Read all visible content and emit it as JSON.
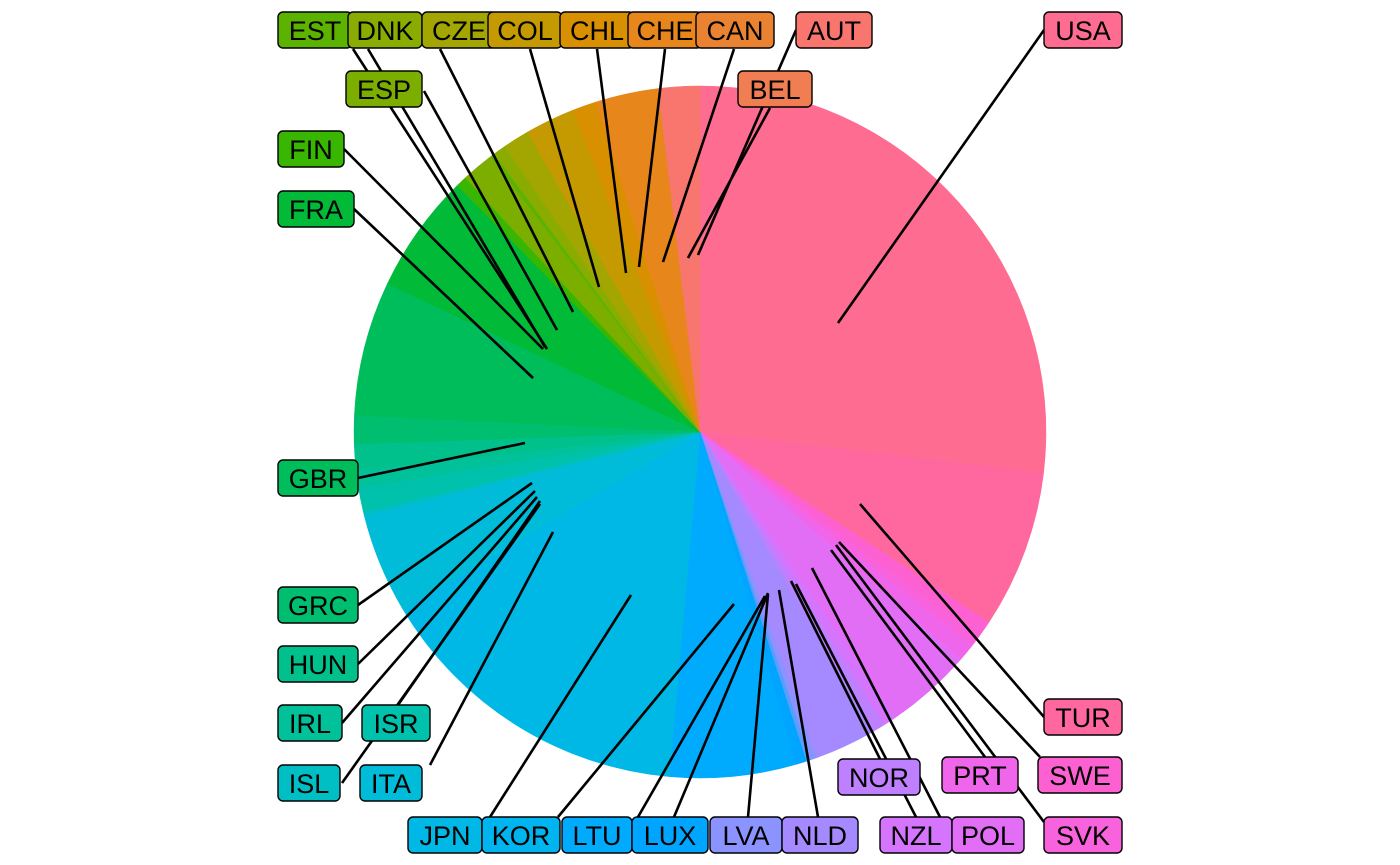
{
  "chart_data": {
    "type": "pie",
    "title": "",
    "start_angle_deg": 0,
    "direction": "clockwise",
    "legend": "none",
    "slices": [
      {
        "label": "USA",
        "value": 26.5,
        "color": "#FF6C91"
      },
      {
        "label": "TUR",
        "value": 7.3,
        "color": "#FF689F"
      },
      {
        "label": "SWE",
        "value": 0.8,
        "color": "#FD61D1"
      },
      {
        "label": "SVK",
        "value": 0.5,
        "color": "#F962DD"
      },
      {
        "label": "PRT",
        "value": 0.8,
        "color": "#F066EA"
      },
      {
        "label": "POL",
        "value": 4.0,
        "color": "#E36EF6"
      },
      {
        "label": "NZL",
        "value": 0.6,
        "color": "#D575FE"
      },
      {
        "label": "NOR",
        "value": 0.6,
        "color": "#BF80FF"
      },
      {
        "label": "NLD",
        "value": 2.8,
        "color": "#A58AFF"
      },
      {
        "label": "LVA",
        "value": 0.3,
        "color": "#8B93FF"
      },
      {
        "label": "LUX",
        "value": 0.2,
        "color": "#5B9DFF"
      },
      {
        "label": "LTU",
        "value": 0.5,
        "color": "#00A5FF"
      },
      {
        "label": "KOR",
        "value": 5.8,
        "color": "#00ABFD"
      },
      {
        "label": "JPN",
        "value": 14.8,
        "color": "#00B8E5"
      },
      {
        "label": "ITA",
        "value": 4.6,
        "color": "#00BCD8"
      },
      {
        "label": "ISL",
        "value": 0.2,
        "color": "#00BFC4"
      },
      {
        "label": "ISR",
        "value": 1.1,
        "color": "#00C1AB"
      },
      {
        "label": "IRL",
        "value": 0.8,
        "color": "#00C19A"
      },
      {
        "label": "HUN",
        "value": 1.2,
        "color": "#00C08B"
      },
      {
        "label": "GRC",
        "value": 1.3,
        "color": "#00BE70"
      },
      {
        "label": "GBR",
        "value": 6.2,
        "color": "#00BD5C"
      },
      {
        "label": "FRA",
        "value": 5.5,
        "color": "#00BA38"
      },
      {
        "label": "FIN",
        "value": 0.5,
        "color": "#39B600"
      },
      {
        "label": "ESP",
        "value": 1.5,
        "color": "#7CAE00"
      },
      {
        "label": "EST",
        "value": 0.2,
        "color": "#5BB300"
      },
      {
        "label": "DNK",
        "value": 0.6,
        "color": "#8AAB00"
      },
      {
        "label": "CZE",
        "value": 1.2,
        "color": "#A3A500"
      },
      {
        "label": "COL",
        "value": 2.3,
        "color": "#C49A00"
      },
      {
        "label": "CHL",
        "value": 1.1,
        "color": "#D89000"
      },
      {
        "label": "CHE",
        "value": 2.9,
        "color": "#E7861B"
      },
      {
        "label": "CAN",
        "value": 0.0,
        "color": "#EA8331"
      },
      {
        "label": "BEL",
        "value": 1.1,
        "color": "#F8766D"
      },
      {
        "label": "AUT",
        "value": 0.8,
        "color": "#F8766D"
      }
    ],
    "labels": [
      {
        "text": "EST",
        "color": "#5BB300"
      },
      {
        "text": "DNK",
        "color": "#8AAB00"
      },
      {
        "text": "CZE",
        "color": "#A3A500"
      },
      {
        "text": "COL",
        "color": "#C49A00"
      },
      {
        "text": "CHL",
        "color": "#D89000"
      },
      {
        "text": "CHE",
        "color": "#E7861B"
      },
      {
        "text": "CAN",
        "color": "#EA8331"
      },
      {
        "text": "AUT",
        "color": "#F8766D"
      },
      {
        "text": "USA",
        "color": "#FF6C91"
      },
      {
        "text": "ESP",
        "color": "#7CAE00"
      },
      {
        "text": "BEL",
        "color": "#F17D52"
      },
      {
        "text": "FIN",
        "color": "#39B600"
      },
      {
        "text": "FRA",
        "color": "#00BA38"
      },
      {
        "text": "GBR",
        "color": "#00BD5C"
      },
      {
        "text": "GRC",
        "color": "#00BE70"
      },
      {
        "text": "HUN",
        "color": "#00C08B"
      },
      {
        "text": "IRL",
        "color": "#00C19A"
      },
      {
        "text": "ISR",
        "color": "#00C1AB"
      },
      {
        "text": "ISL",
        "color": "#00BFC4"
      },
      {
        "text": "ITA",
        "color": "#00BCD8"
      },
      {
        "text": "JPN",
        "color": "#00B8E5"
      },
      {
        "text": "KOR",
        "color": "#00B4EF"
      },
      {
        "text": "LTU",
        "color": "#00ABFD"
      },
      {
        "text": "LUX",
        "color": "#00A5FF"
      },
      {
        "text": "LVA",
        "color": "#8B93FF"
      },
      {
        "text": "NLD",
        "color": "#A58AFF"
      },
      {
        "text": "NOR",
        "color": "#BF80FF"
      },
      {
        "text": "NZL",
        "color": "#D575FE"
      },
      {
        "text": "POL",
        "color": "#E36EF6"
      },
      {
        "text": "PRT",
        "color": "#F066EA"
      },
      {
        "text": "SWE",
        "color": "#FD61D1"
      },
      {
        "text": "SVK",
        "color": "#F962DD"
      },
      {
        "text": "TUR",
        "color": "#FF689F"
      }
    ]
  }
}
